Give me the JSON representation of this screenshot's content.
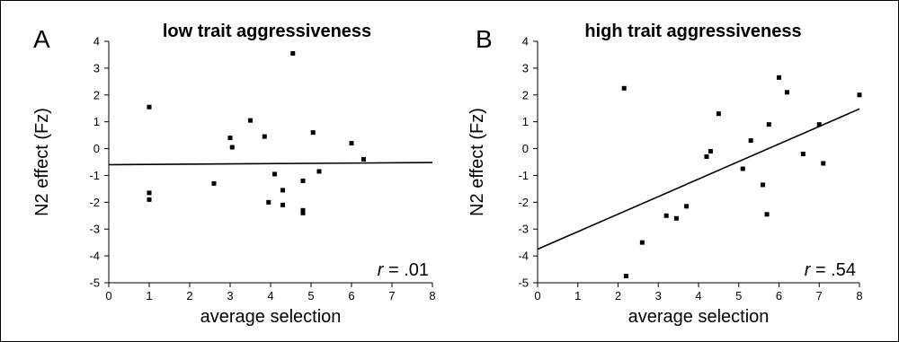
{
  "chart_data": [
    {
      "type": "scatter",
      "panel_label": "A",
      "title": "low trait aggressiveness",
      "xlabel": "average selection",
      "ylabel": "N2 effect (Fz)",
      "xlim": [
        0,
        8
      ],
      "ylim": [
        -5,
        4
      ],
      "x_ticks": [
        "0",
        "1",
        "2",
        "3",
        "4",
        "5",
        "6",
        "7",
        "8"
      ],
      "y_ticks": [
        "4",
        "3",
        "2",
        "1",
        "0",
        "-1",
        "-2",
        "-3",
        "-4",
        "-5"
      ],
      "annotation_r": "r",
      "annotation_value": " = .01",
      "points": [
        {
          "x": 1.0,
          "y": 1.55
        },
        {
          "x": 1.0,
          "y": -1.65
        },
        {
          "x": 1.0,
          "y": -1.9
        },
        {
          "x": 2.6,
          "y": -1.3
        },
        {
          "x": 3.0,
          "y": 0.4
        },
        {
          "x": 3.05,
          "y": 0.05
        },
        {
          "x": 3.5,
          "y": 1.05
        },
        {
          "x": 3.85,
          "y": 0.45
        },
        {
          "x": 3.95,
          "y": -2.0
        },
        {
          "x": 4.1,
          "y": -0.95
        },
        {
          "x": 4.3,
          "y": -1.55
        },
        {
          "x": 4.3,
          "y": -2.1
        },
        {
          "x": 4.55,
          "y": 3.55
        },
        {
          "x": 4.8,
          "y": -1.2
        },
        {
          "x": 4.8,
          "y": -2.3
        },
        {
          "x": 4.8,
          "y": -2.4
        },
        {
          "x": 5.05,
          "y": 0.6
        },
        {
          "x": 5.2,
          "y": -0.85
        },
        {
          "x": 6.0,
          "y": 0.2
        },
        {
          "x": 6.3,
          "y": -0.4
        }
      ],
      "fit_line": [
        {
          "x": 0,
          "y": -0.6
        },
        {
          "x": 8,
          "y": -0.52
        }
      ]
    },
    {
      "type": "scatter",
      "panel_label": "B",
      "title": "high trait aggressiveness",
      "xlabel": "average selection",
      "ylabel": "N2 effect (Fz)",
      "xlim": [
        0,
        8
      ],
      "ylim": [
        -5,
        4
      ],
      "x_ticks": [
        "0",
        "1",
        "2",
        "3",
        "4",
        "5",
        "6",
        "7",
        "8"
      ],
      "y_ticks": [
        "4",
        "3",
        "2",
        "1",
        "0",
        "-1",
        "-2",
        "-3",
        "-4",
        "-5"
      ],
      "annotation_r": "r",
      "annotation_value": " = .54",
      "points": [
        {
          "x": 2.15,
          "y": 2.25
        },
        {
          "x": 2.2,
          "y": -4.75
        },
        {
          "x": 2.6,
          "y": -3.5
        },
        {
          "x": 3.2,
          "y": -2.5
        },
        {
          "x": 3.45,
          "y": -2.6
        },
        {
          "x": 3.7,
          "y": -2.15
        },
        {
          "x": 4.2,
          "y": -0.3
        },
        {
          "x": 4.3,
          "y": -0.1
        },
        {
          "x": 4.5,
          "y": 1.3
        },
        {
          "x": 5.1,
          "y": -0.75
        },
        {
          "x": 5.3,
          "y": 0.3
        },
        {
          "x": 5.6,
          "y": -1.35
        },
        {
          "x": 5.7,
          "y": -2.45
        },
        {
          "x": 5.75,
          "y": 0.9
        },
        {
          "x": 6.0,
          "y": 2.65
        },
        {
          "x": 6.2,
          "y": 2.1
        },
        {
          "x": 6.6,
          "y": -0.2
        },
        {
          "x": 7.0,
          "y": 0.9
        },
        {
          "x": 7.1,
          "y": -0.55
        },
        {
          "x": 8.0,
          "y": 2.0
        }
      ],
      "fit_line": [
        {
          "x": 0,
          "y": -3.75
        },
        {
          "x": 8,
          "y": 1.48
        }
      ]
    }
  ]
}
